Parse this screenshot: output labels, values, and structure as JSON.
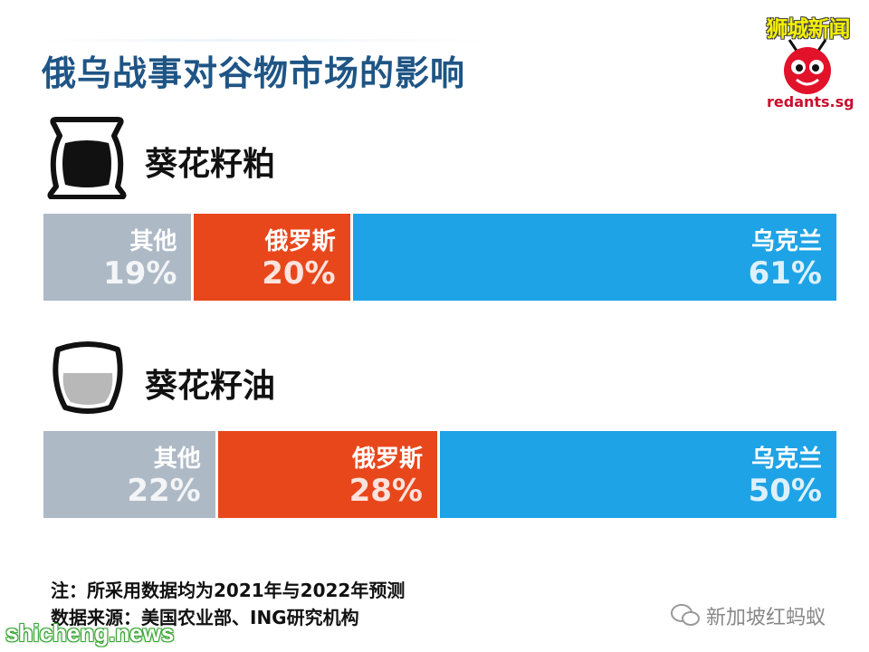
{
  "title": "俄乌战事对谷物市场的影响",
  "brand": {
    "name": "狮城新闻",
    "url": "redants.sg"
  },
  "chart_data": [
    {
      "type": "bar",
      "orientation": "horizontal-stacked",
      "title": "葵花籽粕",
      "icon": "sack-icon",
      "unit": "%",
      "series": [
        {
          "name": "其他",
          "label": "19%",
          "value": 19,
          "color": "#aeb9c6"
        },
        {
          "name": "俄罗斯",
          "label": "20%",
          "value": 20,
          "color": "#e8471c"
        },
        {
          "name": "乌克兰",
          "label": "61%",
          "value": 61,
          "color": "#1ea3e6"
        }
      ]
    },
    {
      "type": "bar",
      "orientation": "horizontal-stacked",
      "title": "葵花籽油",
      "icon": "oil-pot-icon",
      "unit": "%",
      "series": [
        {
          "name": "其他",
          "label": "22%",
          "value": 22,
          "color": "#aeb9c6"
        },
        {
          "name": "俄罗斯",
          "label": "28%",
          "value": 28,
          "color": "#e8471c"
        },
        {
          "name": "乌克兰",
          "label": "50%",
          "value": 50,
          "color": "#1ea3e6"
        }
      ]
    }
  ],
  "notes": {
    "note": "注：所采用数据均为2021年与2022年预测",
    "source": "数据来源：美国农业部、ING研究机构"
  },
  "watermarks": {
    "right": "新加坡红蚂蚁",
    "left": "shicheng.news"
  }
}
